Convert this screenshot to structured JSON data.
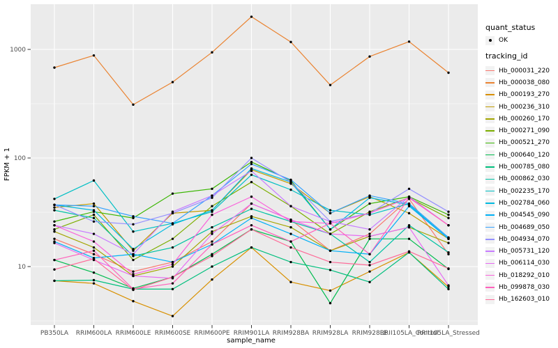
{
  "chart_data": {
    "type": "line",
    "title": "",
    "xlabel": "sample_name",
    "ylabel": "FPKM + 1",
    "y_scale": "log10",
    "ylim": [
      3,
      2600
    ],
    "y_ticks": [
      10,
      100,
      1000
    ],
    "y_minor_ticks": [
      3.162,
      31.623,
      316.23
    ],
    "grid": true,
    "legend_position": "right",
    "panel_bg": "#EBEBEB",
    "grid_color": "#FFFFFF",
    "point_color": "#000000",
    "axis_text_color": "#4D4D4D",
    "tick_color": "#333333",
    "x_categories": [
      "PB350LA",
      "RRIM600LA",
      "RRIM600LE",
      "RRIM600SE",
      "RRIM600PE",
      "RRIM901LA",
      "RRIM928BA",
      "RRIM928LA",
      "RRIM928LE",
      "RRII105LA_Control",
      "RRII105LA_Stressed"
    ],
    "series": [
      {
        "name": "Hb_000031_220",
        "color": "#F8766D",
        "values": [
          18,
          13,
          9,
          11,
          17,
          38,
          27,
          14,
          20,
          42,
          13
        ]
      },
      {
        "name": "Hb_000038_080",
        "color": "#EA8331",
        "values": [
          680,
          880,
          310,
          500,
          940,
          2000,
          1170,
          470,
          860,
          1180,
          610
        ]
      },
      {
        "name": "Hb_000193_270",
        "color": "#D89000",
        "values": [
          7.4,
          7,
          4.8,
          3.5,
          7.6,
          15,
          7.2,
          6,
          9,
          13.5,
          6.5
        ]
      },
      {
        "name": "Hb_000236_310",
        "color": "#C09B00",
        "values": [
          35,
          38,
          14,
          31,
          33,
          78,
          58,
          31,
          44,
          31,
          18
        ]
      },
      {
        "name": "Hb_000260_170",
        "color": "#A3A500",
        "values": [
          21,
          15,
          8.2,
          10,
          21,
          29,
          23,
          14,
          19,
          23,
          16.5
        ]
      },
      {
        "name": "Hb_000271_090",
        "color": "#7CAE00",
        "values": [
          22,
          30,
          11.5,
          18,
          36,
          60,
          36,
          20,
          32,
          43,
          28
        ]
      },
      {
        "name": "Hb_000521_270",
        "color": "#39B600",
        "values": [
          26,
          32,
          28,
          47,
          52,
          92,
          62,
          22,
          38,
          44,
          30
        ]
      },
      {
        "name": "Hb_000640_120",
        "color": "#00BB4E",
        "values": [
          11.5,
          8.8,
          6.3,
          8,
          13,
          22,
          17,
          4.6,
          18,
          18,
          9.5
        ]
      },
      {
        "name": "Hb_000785_080",
        "color": "#00BF7D",
        "values": [
          7.4,
          7.5,
          6.2,
          6.2,
          10,
          15,
          11,
          9.3,
          7.2,
          13.5,
          6.2
        ]
      },
      {
        "name": "Hb_000862_030",
        "color": "#00C1A3",
        "values": [
          33,
          28,
          12.5,
          15,
          23,
          34,
          26,
          20,
          11,
          24,
          13.5
        ]
      },
      {
        "name": "Hb_002235_170",
        "color": "#00BFC4",
        "values": [
          42,
          62,
          21,
          25,
          32,
          70,
          51,
          33,
          30,
          38,
          18.5
        ]
      },
      {
        "name": "Hb_002784_060",
        "color": "#00BAE0",
        "values": [
          37,
          33,
          14.5,
          24.5,
          33,
          80,
          60,
          22,
          43,
          37,
          18
        ]
      },
      {
        "name": "Hb_004545_090",
        "color": "#00B0F6",
        "values": [
          17,
          12,
          13,
          11,
          16,
          28,
          20,
          14,
          13,
          36,
          18
        ]
      },
      {
        "name": "Hb_004689_050",
        "color": "#35A2FF",
        "values": [
          37,
          36,
          29,
          25,
          45,
          88,
          63,
          31,
          45,
          38,
          18.5
        ]
      },
      {
        "name": "Hb_004934_070",
        "color": "#9590FF",
        "values": [
          37,
          26,
          24.5,
          31,
          43,
          100,
          60,
          26,
          31,
          52,
          32
        ]
      },
      {
        "name": "Hb_005731_120",
        "color": "#C77CFF",
        "values": [
          24,
          20,
          13,
          32,
          45,
          76,
          36,
          26,
          22,
          44,
          24
        ]
      },
      {
        "name": "Hb_006114_030",
        "color": "#E76BF3",
        "values": [
          16.5,
          11.5,
          8.2,
          7.8,
          20,
          38,
          27,
          20,
          19,
          23,
          6.7
        ]
      },
      {
        "name": "Hb_018292_010",
        "color": "#FA62DB",
        "values": [
          24,
          17,
          8.5,
          10.5,
          30,
          44,
          26,
          25,
          31,
          43,
          24
        ]
      },
      {
        "name": "Hb_099878_030",
        "color": "#FF62BC",
        "values": [
          11.5,
          14,
          6.2,
          7,
          16,
          24,
          17,
          25,
          13,
          43,
          24
        ]
      },
      {
        "name": "Hb_162603_010",
        "color": "#FF6A98",
        "values": [
          9.4,
          11.8,
          6.1,
          8,
          12.5,
          22,
          15,
          11,
          10.3,
          13.8,
          9.6
        ]
      }
    ]
  },
  "legend": {
    "quant_status": {
      "title": "quant_status",
      "items": [
        {
          "label": "OK",
          "marker": "black-point"
        }
      ]
    },
    "tracking_id": {
      "title": "tracking_id"
    }
  }
}
